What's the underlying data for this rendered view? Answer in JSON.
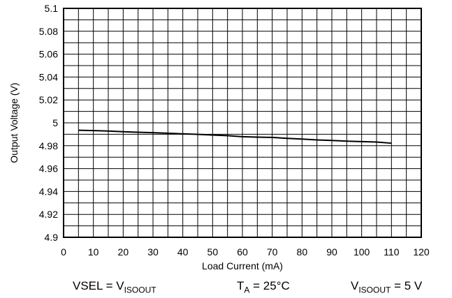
{
  "chart_data": {
    "type": "line",
    "xlabel": "Load Current (mA)",
    "ylabel": "Output Voltage (V)",
    "xlim": [
      0,
      120
    ],
    "ylim": [
      4.9,
      5.1
    ],
    "x_ticks": [
      "0",
      "10",
      "20",
      "30",
      "40",
      "50",
      "60",
      "70",
      "80",
      "90",
      "100",
      "110",
      "120"
    ],
    "y_ticks": [
      "5.1",
      "5.08",
      "5.06",
      "5.04",
      "5.02",
      "5",
      "4.98",
      "4.96",
      "4.94",
      "4.92",
      "4.9"
    ],
    "grid": {
      "x_step": 5,
      "y_step": 0.01
    },
    "series": [
      {
        "color": "#000000",
        "x": [
          5,
          10,
          15,
          20,
          25,
          30,
          35,
          40,
          45,
          50,
          55,
          60,
          65,
          70,
          75,
          80,
          85,
          90,
          95,
          100,
          105,
          110
        ],
        "y": [
          4.9935,
          4.9932,
          4.9928,
          4.9922,
          4.9918,
          4.9914,
          4.9909,
          4.9904,
          4.9899,
          4.9893,
          4.9888,
          4.9879,
          4.9875,
          4.9873,
          4.9864,
          4.9858,
          4.9851,
          4.9846,
          4.984,
          4.9836,
          4.9832,
          4.9822
        ]
      }
    ]
  },
  "conditions": {
    "vsel": {
      "prefix": "VSEL = V",
      "sub": "ISOOUT"
    },
    "ta": {
      "prefix": "T",
      "sub": "A",
      "suffix": " = 25°C"
    },
    "viso": {
      "prefix": "V",
      "sub": "ISOOUT",
      "suffix": " = 5 V"
    }
  }
}
